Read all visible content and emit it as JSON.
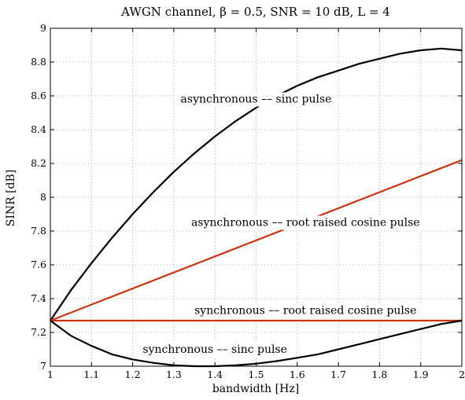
{
  "chart_data": {
    "type": "line",
    "title": "AWGN channel,  β = 0.5, SNR = 10 dB, L = 4",
    "xlabel": "bandwidth [Hz]",
    "ylabel": "SINR [dB]",
    "xlim": [
      1,
      2
    ],
    "ylim": [
      7,
      9
    ],
    "grid": true,
    "xticks": [
      "1",
      "1.1",
      "1.2",
      "1.3",
      "1.4",
      "1.5",
      "1.6",
      "1.7",
      "1.8",
      "1.9",
      "2"
    ],
    "yticks": [
      "7",
      "7.2",
      "7.4",
      "7.6",
      "7.8",
      "8",
      "8.2",
      "8.4",
      "8.6",
      "8.8",
      "9"
    ],
    "series": [
      {
        "color": "#000000",
        "x": [
          1.0,
          1.05,
          1.1,
          1.15,
          1.2,
          1.25,
          1.3,
          1.35,
          1.4,
          1.45,
          1.5,
          1.55,
          1.6,
          1.65,
          1.7,
          1.75,
          1.8,
          1.85,
          1.9,
          1.95,
          2.0
        ],
        "y": [
          7.27,
          7.45,
          7.61,
          7.76,
          7.9,
          8.03,
          8.15,
          8.26,
          8.36,
          8.45,
          8.53,
          8.6,
          8.66,
          8.71,
          8.75,
          8.79,
          8.82,
          8.85,
          8.87,
          8.88,
          8.87
        ]
      },
      {
        "color": "#cc3311",
        "x": [
          1.0,
          2.0
        ],
        "y": [
          7.27,
          8.22
        ]
      },
      {
        "color": "#cc3311",
        "x": [
          1.0,
          2.0
        ],
        "y": [
          7.27,
          7.27
        ]
      },
      {
        "color": "#000000",
        "x": [
          1.0,
          1.05,
          1.1,
          1.15,
          1.2,
          1.25,
          1.3,
          1.35,
          1.4,
          1.45,
          1.5,
          1.55,
          1.6,
          1.65,
          1.7,
          1.75,
          1.8,
          1.85,
          1.9,
          1.95,
          2.0
        ],
        "y": [
          7.27,
          7.18,
          7.12,
          7.07,
          7.04,
          7.02,
          7.005,
          7.0,
          7.0,
          7.005,
          7.015,
          7.03,
          7.05,
          7.07,
          7.1,
          7.13,
          7.16,
          7.19,
          7.22,
          7.25,
          7.27
        ]
      }
    ],
    "annotations": [
      {
        "text": "asynchronous –– sinc pulse",
        "x": 1.5,
        "y": 8.56
      },
      {
        "text": "asynchronous –– root raised cosine pulse",
        "x": 1.62,
        "y": 7.83
      },
      {
        "text": "synchronous –– root raised cosine pulse",
        "x": 1.62,
        "y": 7.31
      },
      {
        "text": "synchronous –– sinc pulse",
        "x": 1.4,
        "y": 7.08
      }
    ]
  }
}
